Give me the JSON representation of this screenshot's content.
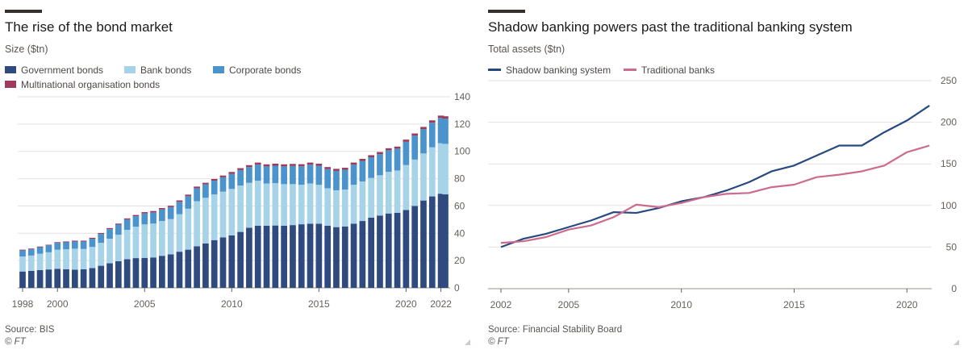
{
  "colors": {
    "government": "#2e4a7f",
    "bank": "#a7d3e8",
    "corporate": "#4a93cc",
    "multinational": "#9e3a5b",
    "shadow": "#264a80",
    "traditional": "#cc6b8e",
    "grid": "#e6e1dd",
    "axis": "#66605c"
  },
  "left": {
    "title": "The rise of the bond market",
    "subtitle": "Size ($tn)",
    "legend": [
      "Government bonds",
      "Bank bonds",
      "Corporate bonds",
      "Multinational organisation bonds"
    ],
    "source": "Source: BIS",
    "credit": "© FT"
  },
  "right": {
    "title": "Shadow banking powers past the traditional banking system",
    "subtitle": "Total assets ($tn)",
    "legend": [
      "Shadow banking system",
      "Traditional banks"
    ],
    "source": "Source: Financial Stability Board",
    "credit": "© FT"
  },
  "chart_data": [
    {
      "type": "bar",
      "stacked": true,
      "title": "The rise of the bond market",
      "ylabel": "Size ($tn)",
      "ylim": [
        0,
        140
      ],
      "yticks": [
        0,
        20,
        40,
        60,
        80,
        100,
        120,
        140
      ],
      "xtick_labels": [
        "1998",
        "2000",
        "2005",
        "2010",
        "2015",
        "2020",
        "2022"
      ],
      "x_range": [
        "1998 Q1",
        "2022 Q2"
      ],
      "periods": "quarterly",
      "x": [
        "1998 Q1",
        "1998 Q3",
        "1999 Q1",
        "1999 Q3",
        "2000 Q1",
        "2000 Q3",
        "2001 Q1",
        "2001 Q3",
        "2002 Q1",
        "2002 Q3",
        "2003 Q1",
        "2003 Q3",
        "2004 Q1",
        "2004 Q3",
        "2005 Q1",
        "2005 Q3",
        "2006 Q1",
        "2006 Q3",
        "2007 Q1",
        "2007 Q3",
        "2008 Q1",
        "2008 Q3",
        "2009 Q1",
        "2009 Q3",
        "2010 Q1",
        "2010 Q3",
        "2011 Q1",
        "2011 Q3",
        "2012 Q1",
        "2012 Q3",
        "2013 Q1",
        "2013 Q3",
        "2014 Q1",
        "2014 Q3",
        "2015 Q1",
        "2015 Q3",
        "2016 Q1",
        "2016 Q3",
        "2017 Q1",
        "2017 Q3",
        "2018 Q1",
        "2018 Q3",
        "2019 Q1",
        "2019 Q3",
        "2020 Q1",
        "2020 Q3",
        "2021 Q1",
        "2021 Q3",
        "2022 Q1",
        "2022 Q2"
      ],
      "series": [
        {
          "name": "Government bonds",
          "values": [
            12,
            12.5,
            13,
            13.5,
            14,
            13.7,
            13.3,
            13.6,
            14.5,
            16.2,
            18,
            19.5,
            21,
            21.8,
            22,
            22.3,
            23.5,
            24.6,
            26.5,
            28,
            30.5,
            32.5,
            35,
            37,
            38.5,
            41,
            44,
            45.5,
            45.5,
            45.7,
            45.5,
            46,
            46.6,
            47,
            47,
            45.5,
            44.5,
            45,
            47,
            49,
            51.5,
            53,
            54.5,
            55,
            57,
            60,
            64,
            67,
            69,
            68.5
          ]
        },
        {
          "name": "Bank bonds",
          "values": [
            11,
            11.2,
            12,
            12.6,
            14,
            14.6,
            15.4,
            14.9,
            15.5,
            16.8,
            18,
            19.5,
            21.5,
            23,
            24.5,
            24.8,
            25.5,
            25.8,
            27.5,
            30,
            33,
            33.5,
            33.5,
            33.5,
            34,
            34,
            33,
            33,
            31,
            31,
            30.5,
            30,
            29,
            29.5,
            28.5,
            27.5,
            27,
            27,
            28.5,
            29,
            29,
            29.5,
            30.5,
            31,
            33,
            34,
            34.5,
            36,
            37,
            37
          ]
        },
        {
          "name": "Corporate bonds",
          "values": [
            4.5,
            4.6,
            4.8,
            5,
            5,
            5.1,
            5.3,
            5.5,
            6,
            6.5,
            7,
            7.3,
            7.5,
            7.7,
            8,
            8.2,
            8.5,
            8.8,
            9,
            9.2,
            9.5,
            9.8,
            10,
            10.5,
            11,
            11.3,
            11.5,
            11.8,
            12.5,
            12.8,
            13,
            13.3,
            13.5,
            13.8,
            14,
            14,
            14.2,
            14.5,
            14.8,
            15,
            15.2,
            15.5,
            15.8,
            16,
            17,
            17.5,
            17.8,
            18,
            18.5,
            18.5
          ]
        },
        {
          "name": "Multinational organisation bonds",
          "values": [
            0.5,
            0.5,
            0.5,
            0.5,
            0.5,
            0.6,
            0.6,
            0.6,
            0.7,
            0.7,
            0.8,
            0.8,
            0.9,
            0.9,
            1,
            1,
            1,
            1,
            1.1,
            1.1,
            1.2,
            1.2,
            1.3,
            1.3,
            1.4,
            1.4,
            1.4,
            1.5,
            1.5,
            1.5,
            1.5,
            1.5,
            1.5,
            1.5,
            1.5,
            1.5,
            1.5,
            1.5,
            1.5,
            1.5,
            1.5,
            1.5,
            1.5,
            1.5,
            1.6,
            1.6,
            1.6,
            1.7,
            1.7,
            1.7
          ]
        }
      ]
    },
    {
      "type": "line",
      "title": "Shadow banking powers past the traditional banking system",
      "ylabel": "Total assets ($tn)",
      "ylim": [
        0,
        250
      ],
      "yticks": [
        0,
        50,
        100,
        150,
        200,
        250
      ],
      "xlim": [
        2002,
        2021
      ],
      "xticks": [
        2002,
        2005,
        2010,
        2015,
        2020
      ],
      "x": [
        2002,
        2003,
        2004,
        2005,
        2006,
        2007,
        2008,
        2009,
        2010,
        2011,
        2012,
        2013,
        2014,
        2015,
        2016,
        2017,
        2018,
        2019,
        2020,
        2021
      ],
      "series": [
        {
          "name": "Shadow banking system",
          "values": [
            50,
            60,
            66,
            74,
            82,
            92,
            91,
            97,
            105,
            110,
            118,
            128,
            141,
            148,
            160,
            172,
            172,
            188,
            202,
            220
          ]
        },
        {
          "name": "Traditional banks",
          "values": [
            55,
            57,
            62,
            71,
            76,
            86,
            101,
            98,
            103,
            110,
            114,
            115,
            122,
            125,
            134,
            137,
            141,
            148,
            164,
            172
          ]
        }
      ]
    }
  ]
}
